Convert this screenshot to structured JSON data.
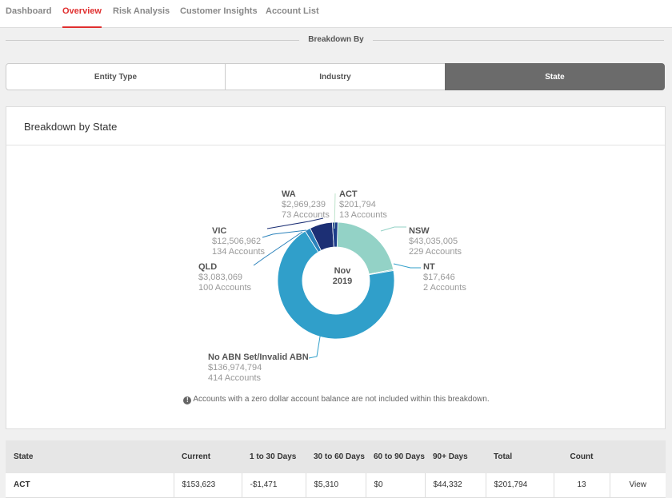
{
  "nav": {
    "tabs": [
      "Dashboard",
      "Overview",
      "Risk Analysis",
      "Customer Insights",
      "Account List"
    ],
    "active": 1
  },
  "breakdown": {
    "label": "Breakdown By",
    "options": [
      "Entity Type",
      "Industry",
      "State"
    ],
    "active": 2
  },
  "card": {
    "title": "Breakdown by State",
    "center_line1": "Nov",
    "center_line2": "2019",
    "note": "Accounts with a zero dollar account balance are not included within this breakdown."
  },
  "chart_data": {
    "type": "pie",
    "title": "Breakdown by State",
    "center_label": "Nov 2019",
    "slices": [
      {
        "name": "ACT",
        "value": 201794,
        "value_label": "$201,794",
        "count_label": "13 Accounts",
        "color": "#c8e8d6"
      },
      {
        "name": "NSW",
        "value": 43035005,
        "value_label": "$43,035,005",
        "count_label": "229 Accounts",
        "color": "#93d2c6"
      },
      {
        "name": "NT",
        "value": 17646,
        "value_label": "$17,646",
        "count_label": "2 Accounts",
        "color": "#7fc6c6"
      },
      {
        "name": "No ABN Set/Invalid ABN",
        "value": 136974794,
        "value_label": "$136,974,794",
        "count_label": "414 Accounts",
        "color": "#309fca"
      },
      {
        "name": "QLD",
        "value": 3083069,
        "value_label": "$3,083,069",
        "count_label": "100 Accounts",
        "color": "#2b82bb"
      },
      {
        "name": "VIC",
        "value": 12506962,
        "value_label": "$12,506,962",
        "count_label": "134 Accounts",
        "color": "#1c2f74"
      },
      {
        "name": "WA",
        "value": 2969239,
        "value_label": "$2,969,239",
        "count_label": "73 Accounts",
        "color": "#1c3d8a"
      }
    ]
  },
  "table": {
    "headers": {
      "state": "State",
      "current": "Current",
      "d1_30": "1 to 30 Days",
      "d30_60": "30 to 60 Days",
      "d60_90": "60 to 90 Days",
      "d90p": "90+ Days",
      "total": "Total",
      "count": "Count"
    },
    "rows": [
      {
        "state": "ACT",
        "current": "$153,623",
        "d1_30": "-$1,471",
        "d30_60": "$5,310",
        "d60_90": "$0",
        "d90p": "$44,332",
        "total": "$201,794",
        "count": "13",
        "action": "View"
      }
    ]
  }
}
